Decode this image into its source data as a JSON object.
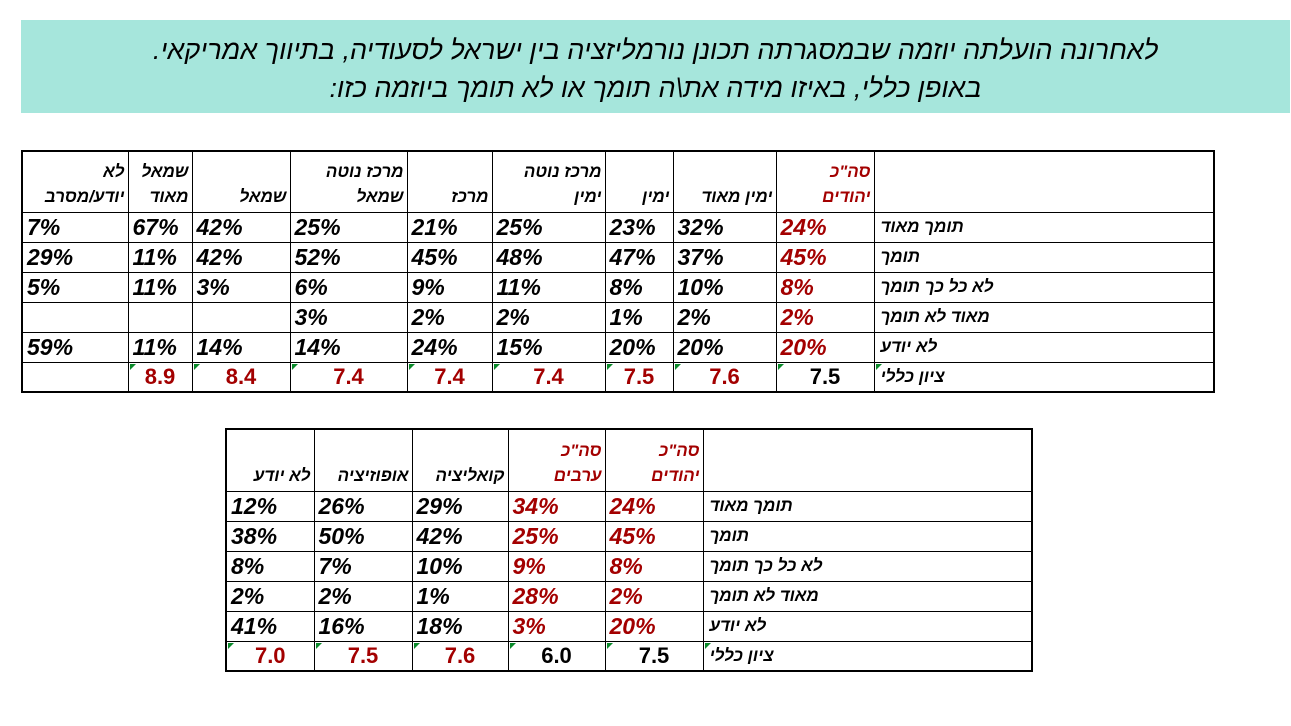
{
  "question": {
    "line1": "לאחרונה הועלתה יוזמה שבמסגרתה תכונן נורמליזציה בין ישראל לסעודיה, בתיווך אמריקאי.",
    "line2": "באופן כללי, באיזו מידה את\\ה תומך או לא תומך ביוזמה כזו:"
  },
  "colors": {
    "banner_bg": "#a6e6dc",
    "highlight_red": "#a30000",
    "corner_marker": "#0a8a2a"
  },
  "table1": {
    "headers": [
      {
        "lines": [
          "סה\"כ",
          "יהודים"
        ],
        "red": true
      },
      {
        "lines": [
          "",
          "ימין מאוד"
        ],
        "red": false
      },
      {
        "lines": [
          "",
          "ימין"
        ],
        "red": false
      },
      {
        "lines": [
          "מרכז נוטה",
          "ימין"
        ],
        "red": false
      },
      {
        "lines": [
          "",
          "מרכז"
        ],
        "red": false
      },
      {
        "lines": [
          "מרכז נוטה",
          "שמאל"
        ],
        "red": false
      },
      {
        "lines": [
          "",
          "שמאל"
        ],
        "red": false
      },
      {
        "lines": [
          "שמאל",
          "מאוד"
        ],
        "red": false
      },
      {
        "lines": [
          "לא",
          "יודע/מסרב"
        ],
        "red": false
      }
    ],
    "rows": [
      {
        "label": "תומך מאוד",
        "values": [
          "24%",
          "32%",
          "23%",
          "25%",
          "21%",
          "25%",
          "42%",
          "67%",
          "7%"
        ]
      },
      {
        "label": "תומך",
        "values": [
          "45%",
          "37%",
          "47%",
          "48%",
          "45%",
          "52%",
          "42%",
          "11%",
          "29%"
        ]
      },
      {
        "label": "לא כל כך תומך",
        "values": [
          "8%",
          "10%",
          "8%",
          "11%",
          "9%",
          "6%",
          "3%",
          "11%",
          "5%"
        ]
      },
      {
        "label": "מאוד לא תומך",
        "values": [
          "2%",
          "2%",
          "1%",
          "2%",
          "2%",
          "3%",
          "",
          "",
          ""
        ]
      },
      {
        "label": "לא יודע",
        "values": [
          "20%",
          "20%",
          "20%",
          "15%",
          "24%",
          "14%",
          "14%",
          "11%",
          "59%"
        ]
      }
    ],
    "score": {
      "label": "ציון כללי",
      "values": [
        "7.5",
        "7.6",
        "7.5",
        "7.4",
        "7.4",
        "7.4",
        "8.4",
        "8.9",
        ""
      ]
    }
  },
  "table2": {
    "headers": [
      {
        "lines": [
          "סה\"כ",
          "יהודים"
        ],
        "red": true
      },
      {
        "lines": [
          "סה\"כ",
          "ערבים"
        ],
        "red": true
      },
      {
        "lines": [
          "",
          "קואליציה"
        ],
        "red": false
      },
      {
        "lines": [
          "",
          "אופוזיציה"
        ],
        "red": false
      },
      {
        "lines": [
          "",
          "לא יודע"
        ],
        "red": false
      }
    ],
    "rows": [
      {
        "label": "תומך מאוד",
        "values": [
          "24%",
          "34%",
          "29%",
          "26%",
          "12%"
        ]
      },
      {
        "label": "תומך",
        "values": [
          "45%",
          "25%",
          "42%",
          "50%",
          "38%"
        ]
      },
      {
        "label": "לא כל כך תומך",
        "values": [
          "8%",
          "9%",
          "10%",
          "7%",
          "8%"
        ]
      },
      {
        "label": "מאוד לא תומך",
        "values": [
          "2%",
          "28%",
          "1%",
          "2%",
          "2%"
        ]
      },
      {
        "label": "לא יודע",
        "values": [
          "20%",
          "3%",
          "18%",
          "16%",
          "41%"
        ]
      }
    ],
    "score": {
      "label": "ציון כללי",
      "values": [
        "7.5",
        "6.0",
        "7.6",
        "7.5",
        "7.0"
      ]
    }
  }
}
